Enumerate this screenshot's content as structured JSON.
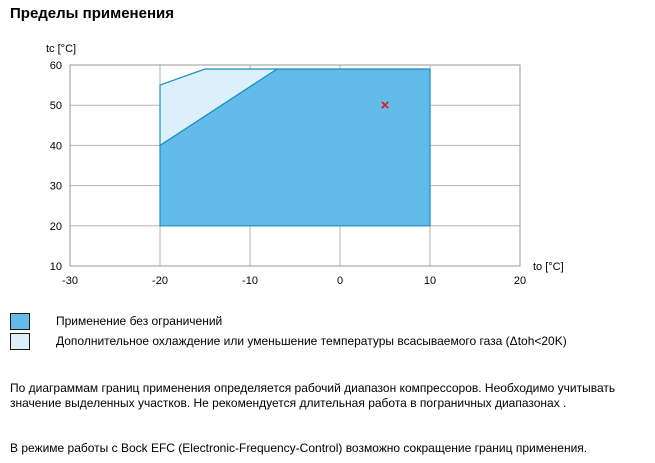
{
  "page_title": "Пределы применения",
  "colors": {
    "main_area": "#63bbea",
    "extra_area": "#dcf0fb",
    "outline": "#1a8fc0",
    "marker": "#e8121e",
    "grid": "#b5b5b5"
  },
  "chart_data": {
    "type": "area",
    "xlabel": "to [°C]",
    "ylabel": "tc [°C]",
    "xlim": [
      -30,
      20
    ],
    "ylim": [
      10,
      60
    ],
    "x_ticks": [
      -30,
      -20,
      -10,
      0,
      10,
      20
    ],
    "y_ticks": [
      10,
      20,
      30,
      40,
      50,
      60
    ],
    "x_tick_labels": [
      "-30",
      "-20",
      "-10",
      "0",
      "10",
      "20"
    ],
    "y_tick_labels": [
      "10",
      "20",
      "30",
      "40",
      "50",
      "60"
    ],
    "grid": true,
    "regions": [
      {
        "name": "Применение без ограничений",
        "color": "#63bbea",
        "points": [
          [
            -20,
            20
          ],
          [
            10,
            20
          ],
          [
            10,
            59
          ],
          [
            -7,
            59
          ],
          [
            -20,
            40
          ]
        ]
      },
      {
        "name": "Дополнительное охлаждение или уменьшение температуры всасываемого газа (Δtoh<20K)",
        "color": "#dcf0fb",
        "points": [
          [
            -20,
            40
          ],
          [
            -20,
            55
          ],
          [
            -15,
            59
          ],
          [
            -7,
            59
          ]
        ]
      }
    ],
    "operating_point": {
      "x": 5,
      "y": 50,
      "marker": "×"
    }
  },
  "legend": [
    {
      "label": "Применение без ограничений"
    },
    {
      "label": "Дополнительное охлаждение или уменьшение температуры всасываемого газа (Δtoh<20K)"
    }
  ],
  "notes": [
    "По диаграммам границ применения определяется рабочий диапазон компрессоров. Необходимо учитывать значение выделенных участков. Не рекомендуется длительная работа в пограничных диапазонах .",
    "В режиме работы с Bock EFC (Electronic-Frequency-Control) возможно сокращение границ применения."
  ]
}
